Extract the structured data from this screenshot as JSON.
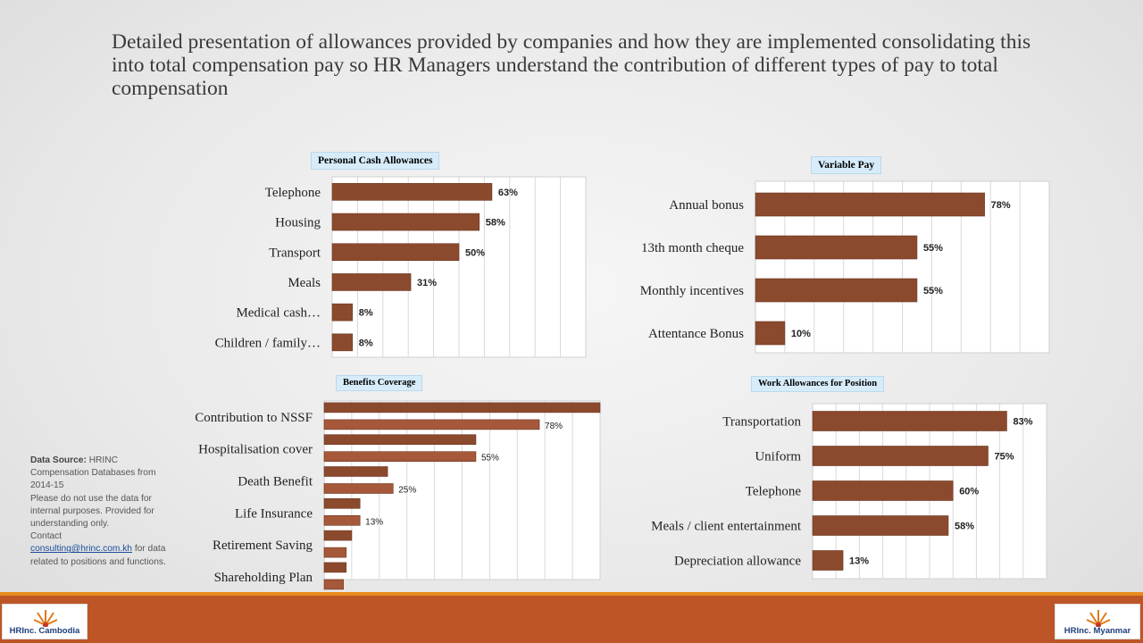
{
  "slide": {
    "title": "Detailed presentation of allowances provided by companies and how they are implemented consolidating this into total compensation pay so HR Managers understand the contribution of different types of pay to total compensation"
  },
  "colors": {
    "bar": "#8b4a2e",
    "bar_light": "#a5583a",
    "grid": "#d9d9d9",
    "footer": "#bd5526",
    "footer_line": "#e88a1a"
  },
  "chart_data": [
    {
      "id": "personal",
      "type": "bar",
      "orientation": "horizontal",
      "title": "Personal Cash Allowances",
      "categories": [
        "Telephone",
        "Housing",
        "Transport",
        "Meals",
        "Medical cash…",
        "Children / family…"
      ],
      "values": [
        63,
        58,
        50,
        31,
        8,
        8
      ],
      "value_labels": [
        "63%",
        "58%",
        "50%",
        "31%",
        "8%",
        "8%"
      ],
      "xlim": [
        0,
        100
      ],
      "grid": true
    },
    {
      "id": "variable",
      "type": "bar",
      "orientation": "horizontal",
      "title": "Variable Pay",
      "categories": [
        "Annual bonus",
        "13th month cheque",
        "Monthly incentives",
        "Attentance Bonus"
      ],
      "values": [
        78,
        55,
        55,
        10
      ],
      "value_labels": [
        "78%",
        "55%",
        "55%",
        "10%"
      ],
      "xlim": [
        0,
        100
      ],
      "grid": true
    },
    {
      "id": "benefits",
      "type": "bar",
      "orientation": "horizontal",
      "title": "Benefits Coverage",
      "categories": [
        "Contribution to NSSF",
        "Hospitalisation cover",
        "Death Benefit",
        "Life Insurance",
        "Retirement Saving",
        "Shareholding Plan"
      ],
      "series": [
        {
          "values": [
            100,
            55,
            23,
            13,
            10,
            8
          ],
          "value_labels": [
            "",
            "",
            "",
            "",
            "",
            ""
          ]
        },
        {
          "values": [
            78,
            55,
            25,
            13,
            8,
            7
          ],
          "value_labels": [
            "78%",
            "55%",
            "25%",
            "13%",
            "",
            ""
          ]
        }
      ],
      "xlim": [
        0,
        100
      ],
      "grid": true
    },
    {
      "id": "work",
      "type": "bar",
      "orientation": "horizontal",
      "title": "Work Allowances for Position",
      "categories": [
        "Transportation",
        "Uniform",
        "Telephone",
        "Meals / client entertainment",
        "Depreciation allowance"
      ],
      "values": [
        83,
        75,
        60,
        58,
        13
      ],
      "value_labels": [
        "83%",
        "75%",
        "60%",
        "58%",
        "13%"
      ],
      "xlim": [
        0,
        100
      ],
      "grid": true
    }
  ],
  "source": {
    "heading": "Data Source:",
    "text1": "HRINC Compensation Databases from 2014-15",
    "text2": "Please do not use the data for internal purposes. Provided for understanding only.",
    "contact_prefix": "Contact",
    "email": "consulting@hrinc.com.kh",
    "contact_suffix": "for data related to positions and functions."
  },
  "logos": {
    "left": "HRInc. Cambodia",
    "right": "HRInc. Myanmar"
  }
}
